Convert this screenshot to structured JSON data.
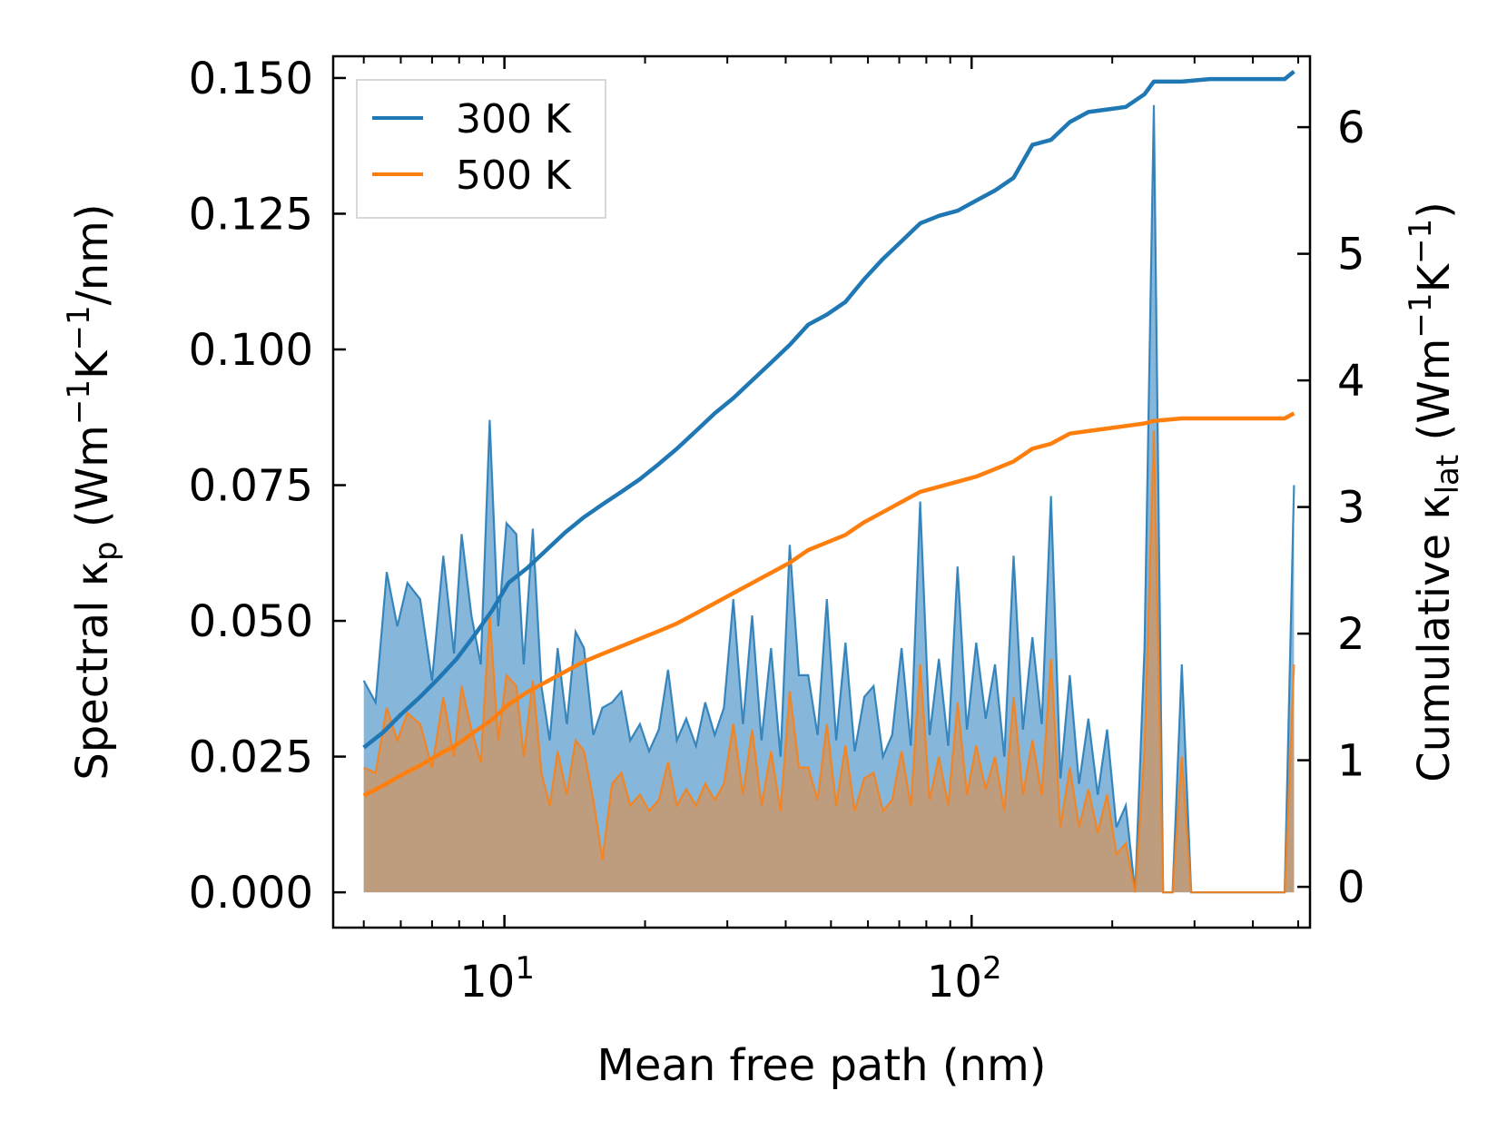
{
  "chart_data": {
    "type": "line",
    "title": "",
    "xlabel": "Mean free path (nm)",
    "ylabel_left": "Spectral κp (Wm−1K−1/nm)",
    "ylabel_right": "Cumulative κlat (Wm−1K−1)",
    "ylabel_left_parts": {
      "pre": "Spectral κ",
      "sub": "p",
      "mid1": " (Wm",
      "sup1": "−1",
      "mid2": "K",
      "sup2": "−1",
      "post": "/nm)"
    },
    "ylabel_right_parts": {
      "pre": "Cumulative κ",
      "sub": "lat",
      "mid1": " (Wm",
      "sup1": "−1",
      "mid2": "K",
      "sup2": "−1",
      "post": ")"
    },
    "xscale": "log",
    "xlim": [
      4.3,
      530
    ],
    "ylim_left": [
      -0.0065,
      0.154
    ],
    "ylim_right": [
      -0.322,
      6.56
    ],
    "x_ticks": [
      {
        "value": 10,
        "base": "10",
        "exp": "1"
      },
      {
        "value": 100,
        "base": "10",
        "exp": "2"
      }
    ],
    "y_ticks_left": [
      "0.000",
      "0.025",
      "0.050",
      "0.075",
      "0.100",
      "0.125",
      "0.150"
    ],
    "y_ticks_right": [
      "0",
      "1",
      "2",
      "3",
      "4",
      "5",
      "6"
    ],
    "legend": {
      "position": "top-left",
      "entries": [
        "300 K",
        "500 K"
      ]
    },
    "series": [
      {
        "name": "300 K",
        "color": "#1f77b4",
        "fill_color": "#7fb2d8",
        "spectral": [
          [
            5.0,
            0.039
          ],
          [
            5.3,
            0.035
          ],
          [
            5.6,
            0.059
          ],
          [
            5.9,
            0.049
          ],
          [
            6.2,
            0.057
          ],
          [
            6.6,
            0.054
          ],
          [
            7.0,
            0.039
          ],
          [
            7.4,
            0.062
          ],
          [
            7.8,
            0.044
          ],
          [
            8.1,
            0.066
          ],
          [
            8.5,
            0.051
          ],
          [
            8.9,
            0.042
          ],
          [
            9.3,
            0.087
          ],
          [
            9.7,
            0.049
          ],
          [
            10.1,
            0.068
          ],
          [
            10.6,
            0.066
          ],
          [
            11.0,
            0.042
          ],
          [
            11.5,
            0.067
          ],
          [
            12.0,
            0.038
          ],
          [
            12.5,
            0.028
          ],
          [
            13.0,
            0.045
          ],
          [
            13.6,
            0.031
          ],
          [
            14.2,
            0.048
          ],
          [
            14.8,
            0.045
          ],
          [
            15.5,
            0.029
          ],
          [
            16.2,
            0.034
          ],
          [
            17.0,
            0.035
          ],
          [
            17.8,
            0.037
          ],
          [
            18.6,
            0.028
          ],
          [
            19.5,
            0.031
          ],
          [
            20.4,
            0.026
          ],
          [
            21.4,
            0.03
          ],
          [
            22.4,
            0.041
          ],
          [
            23.4,
            0.028
          ],
          [
            24.5,
            0.032
          ],
          [
            25.7,
            0.027
          ],
          [
            26.9,
            0.035
          ],
          [
            28.2,
            0.029
          ],
          [
            29.5,
            0.034
          ],
          [
            30.9,
            0.054
          ],
          [
            32.4,
            0.031
          ],
          [
            33.9,
            0.051
          ],
          [
            35.5,
            0.028
          ],
          [
            37.2,
            0.045
          ],
          [
            39.0,
            0.025
          ],
          [
            40.8,
            0.064
          ],
          [
            42.7,
            0.04
          ],
          [
            44.7,
            0.04
          ],
          [
            46.8,
            0.029
          ],
          [
            49.0,
            0.054
          ],
          [
            51.3,
            0.028
          ],
          [
            53.7,
            0.046
          ],
          [
            56.2,
            0.026
          ],
          [
            58.9,
            0.036
          ],
          [
            61.7,
            0.038
          ],
          [
            64.6,
            0.025
          ],
          [
            67.6,
            0.029
          ],
          [
            70.8,
            0.045
          ],
          [
            74.1,
            0.027
          ],
          [
            77.6,
            0.072
          ],
          [
            81.3,
            0.029
          ],
          [
            85.1,
            0.043
          ],
          [
            89.1,
            0.027
          ],
          [
            93.3,
            0.06
          ],
          [
            97.7,
            0.03
          ],
          [
            102.3,
            0.046
          ],
          [
            107.2,
            0.032
          ],
          [
            112.2,
            0.042
          ],
          [
            117.5,
            0.025
          ],
          [
            123.0,
            0.062
          ],
          [
            128.8,
            0.03
          ],
          [
            134.9,
            0.047
          ],
          [
            141.3,
            0.031
          ],
          [
            147.9,
            0.073
          ],
          [
            154.9,
            0.021
          ],
          [
            162.2,
            0.04
          ],
          [
            169.8,
            0.02
          ],
          [
            177.8,
            0.032
          ],
          [
            186.2,
            0.018
          ],
          [
            195.0,
            0.03
          ],
          [
            204.2,
            0.012
          ],
          [
            213.8,
            0.016
          ],
          [
            223.9,
            0.0
          ],
          [
            234.4,
            0.045
          ],
          [
            245.5,
            0.145
          ],
          [
            257.0,
            0.0
          ],
          [
            269.2,
            0.0
          ],
          [
            281.8,
            0.042
          ],
          [
            295.1,
            0.0
          ],
          [
            309.0,
            0.0
          ],
          [
            323.6,
            0.0
          ],
          [
            338.8,
            0.0
          ],
          [
            354.8,
            0.0
          ],
          [
            371.5,
            0.0
          ],
          [
            389.0,
            0.0
          ],
          [
            407.4,
            0.0
          ],
          [
            426.6,
            0.0
          ],
          [
            446.7,
            0.0
          ],
          [
            467.7,
            0.0
          ],
          [
            489.8,
            0.075
          ]
        ],
        "cumulative": [
          [
            5.0,
            1.1
          ],
          [
            5.5,
            1.22
          ],
          [
            6.0,
            1.36
          ],
          [
            6.6,
            1.5
          ],
          [
            7.2,
            1.64
          ],
          [
            7.9,
            1.8
          ],
          [
            8.6,
            1.98
          ],
          [
            9.4,
            2.18
          ],
          [
            10.2,
            2.4
          ],
          [
            11.2,
            2.52
          ],
          [
            12.3,
            2.66
          ],
          [
            13.5,
            2.8
          ],
          [
            14.8,
            2.92
          ],
          [
            16.2,
            3.02
          ],
          [
            17.8,
            3.12
          ],
          [
            19.5,
            3.22
          ],
          [
            21.4,
            3.34
          ],
          [
            23.4,
            3.46
          ],
          [
            25.7,
            3.6
          ],
          [
            28.2,
            3.74
          ],
          [
            30.9,
            3.86
          ],
          [
            33.9,
            4.0
          ],
          [
            37.2,
            4.14
          ],
          [
            40.8,
            4.28
          ],
          [
            44.7,
            4.44
          ],
          [
            49.0,
            4.52
          ],
          [
            53.7,
            4.62
          ],
          [
            58.9,
            4.8
          ],
          [
            64.6,
            4.96
          ],
          [
            70.8,
            5.1
          ],
          [
            77.6,
            5.24
          ],
          [
            85.1,
            5.3
          ],
          [
            93.3,
            5.34
          ],
          [
            102.3,
            5.42
          ],
          [
            112.2,
            5.5
          ],
          [
            123.0,
            5.6
          ],
          [
            134.9,
            5.86
          ],
          [
            147.9,
            5.9
          ],
          [
            162.2,
            6.04
          ],
          [
            177.8,
            6.12
          ],
          [
            195.0,
            6.14
          ],
          [
            213.8,
            6.16
          ],
          [
            234.4,
            6.26
          ],
          [
            245.5,
            6.36
          ],
          [
            281.8,
            6.36
          ],
          [
            323.6,
            6.38
          ],
          [
            389.0,
            6.38
          ],
          [
            467.7,
            6.38
          ],
          [
            489.8,
            6.44
          ]
        ]
      },
      {
        "name": "500 K",
        "color": "#ff7f0e",
        "fill_color": "#c39a72",
        "spectral": [
          [
            5.0,
            0.023
          ],
          [
            5.3,
            0.022
          ],
          [
            5.6,
            0.034
          ],
          [
            5.9,
            0.028
          ],
          [
            6.2,
            0.033
          ],
          [
            6.6,
            0.031
          ],
          [
            7.0,
            0.023
          ],
          [
            7.4,
            0.036
          ],
          [
            7.8,
            0.025
          ],
          [
            8.1,
            0.038
          ],
          [
            8.5,
            0.03
          ],
          [
            8.9,
            0.024
          ],
          [
            9.3,
            0.051
          ],
          [
            9.7,
            0.028
          ],
          [
            10.1,
            0.04
          ],
          [
            10.6,
            0.038
          ],
          [
            11.0,
            0.025
          ],
          [
            11.5,
            0.039
          ],
          [
            12.0,
            0.022
          ],
          [
            12.5,
            0.016
          ],
          [
            13.0,
            0.026
          ],
          [
            13.6,
            0.018
          ],
          [
            14.2,
            0.028
          ],
          [
            14.8,
            0.026
          ],
          [
            15.5,
            0.017
          ],
          [
            16.2,
            0.006
          ],
          [
            17.0,
            0.02
          ],
          [
            17.8,
            0.022
          ],
          [
            18.6,
            0.016
          ],
          [
            19.5,
            0.018
          ],
          [
            20.4,
            0.015
          ],
          [
            21.4,
            0.017
          ],
          [
            22.4,
            0.024
          ],
          [
            23.4,
            0.016
          ],
          [
            24.5,
            0.019
          ],
          [
            25.7,
            0.016
          ],
          [
            26.9,
            0.02
          ],
          [
            28.2,
            0.017
          ],
          [
            29.5,
            0.02
          ],
          [
            30.9,
            0.031
          ],
          [
            32.4,
            0.018
          ],
          [
            33.9,
            0.03
          ],
          [
            35.5,
            0.016
          ],
          [
            37.2,
            0.026
          ],
          [
            39.0,
            0.015
          ],
          [
            40.8,
            0.037
          ],
          [
            42.7,
            0.023
          ],
          [
            44.7,
            0.023
          ],
          [
            46.8,
            0.017
          ],
          [
            49.0,
            0.031
          ],
          [
            51.3,
            0.016
          ],
          [
            53.7,
            0.027
          ],
          [
            56.2,
            0.015
          ],
          [
            58.9,
            0.021
          ],
          [
            61.7,
            0.022
          ],
          [
            64.6,
            0.015
          ],
          [
            67.6,
            0.017
          ],
          [
            70.8,
            0.026
          ],
          [
            74.1,
            0.016
          ],
          [
            77.6,
            0.042
          ],
          [
            81.3,
            0.017
          ],
          [
            85.1,
            0.025
          ],
          [
            89.1,
            0.016
          ],
          [
            93.3,
            0.035
          ],
          [
            97.7,
            0.018
          ],
          [
            102.3,
            0.027
          ],
          [
            107.2,
            0.019
          ],
          [
            112.2,
            0.025
          ],
          [
            117.5,
            0.015
          ],
          [
            123.0,
            0.036
          ],
          [
            128.8,
            0.018
          ],
          [
            134.9,
            0.028
          ],
          [
            141.3,
            0.018
          ],
          [
            147.9,
            0.043
          ],
          [
            154.9,
            0.012
          ],
          [
            162.2,
            0.023
          ],
          [
            169.8,
            0.012
          ],
          [
            177.8,
            0.019
          ],
          [
            186.2,
            0.011
          ],
          [
            195.0,
            0.018
          ],
          [
            204.2,
            0.007
          ],
          [
            213.8,
            0.009
          ],
          [
            223.9,
            0.0
          ],
          [
            234.4,
            0.026
          ],
          [
            245.5,
            0.085
          ],
          [
            257.0,
            0.0
          ],
          [
            269.2,
            0.0
          ],
          [
            281.8,
            0.025
          ],
          [
            295.1,
            0.0
          ],
          [
            309.0,
            0.0
          ],
          [
            323.6,
            0.0
          ],
          [
            338.8,
            0.0
          ],
          [
            354.8,
            0.0
          ],
          [
            371.5,
            0.0
          ],
          [
            389.0,
            0.0
          ],
          [
            407.4,
            0.0
          ],
          [
            426.6,
            0.0
          ],
          [
            446.7,
            0.0
          ],
          [
            467.7,
            0.0
          ],
          [
            489.8,
            0.042
          ]
        ],
        "cumulative": [
          [
            5.0,
            0.72
          ],
          [
            5.5,
            0.8
          ],
          [
            6.0,
            0.88
          ],
          [
            6.6,
            0.96
          ],
          [
            7.2,
            1.04
          ],
          [
            7.9,
            1.12
          ],
          [
            8.6,
            1.22
          ],
          [
            9.4,
            1.32
          ],
          [
            10.2,
            1.44
          ],
          [
            11.2,
            1.54
          ],
          [
            12.3,
            1.62
          ],
          [
            13.5,
            1.7
          ],
          [
            14.8,
            1.78
          ],
          [
            16.2,
            1.84
          ],
          [
            17.8,
            1.9
          ],
          [
            19.5,
            1.96
          ],
          [
            21.4,
            2.02
          ],
          [
            23.4,
            2.08
          ],
          [
            25.7,
            2.16
          ],
          [
            28.2,
            2.24
          ],
          [
            30.9,
            2.32
          ],
          [
            33.9,
            2.4
          ],
          [
            37.2,
            2.48
          ],
          [
            40.8,
            2.56
          ],
          [
            44.7,
            2.66
          ],
          [
            49.0,
            2.72
          ],
          [
            53.7,
            2.78
          ],
          [
            58.9,
            2.88
          ],
          [
            64.6,
            2.96
          ],
          [
            70.8,
            3.04
          ],
          [
            77.6,
            3.12
          ],
          [
            85.1,
            3.16
          ],
          [
            93.3,
            3.2
          ],
          [
            102.3,
            3.24
          ],
          [
            112.2,
            3.3
          ],
          [
            123.0,
            3.36
          ],
          [
            134.9,
            3.46
          ],
          [
            147.9,
            3.5
          ],
          [
            162.2,
            3.58
          ],
          [
            177.8,
            3.6
          ],
          [
            195.0,
            3.62
          ],
          [
            213.8,
            3.64
          ],
          [
            234.4,
            3.66
          ],
          [
            245.5,
            3.68
          ],
          [
            281.8,
            3.7
          ],
          [
            323.6,
            3.7
          ],
          [
            389.0,
            3.7
          ],
          [
            467.7,
            3.7
          ],
          [
            489.8,
            3.74
          ]
        ]
      }
    ]
  }
}
